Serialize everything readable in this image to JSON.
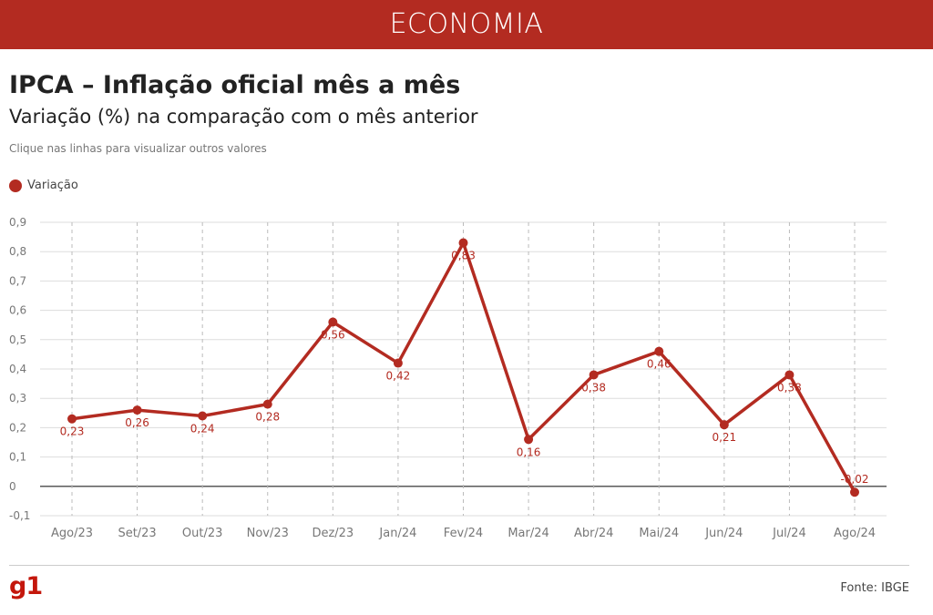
{
  "banner": {
    "section": "ECONOMIA"
  },
  "header": {
    "title": "IPCA – Inflação oficial mês a mês",
    "subtitle": "Variação (%) na comparação com o mês anterior",
    "hint": "Clique nas linhas para visualizar outros valores"
  },
  "legend": {
    "label": "Variação"
  },
  "footer": {
    "logo": "g1",
    "source": "Fonte: IBGE"
  },
  "colors": {
    "accent": "#b32b21",
    "grid": "#dddddd",
    "zero_line": "#222222",
    "axis_text": "#777777"
  },
  "chart_data": {
    "type": "line",
    "title": "IPCA – Inflação oficial mês a mês",
    "subtitle": "Variação (%) na comparação com o mês anterior",
    "categories": [
      "Ago/23",
      "Set/23",
      "Out/23",
      "Nov/23",
      "Dez/23",
      "Jan/24",
      "Fev/24",
      "Mar/24",
      "Abr/24",
      "Mai/24",
      "Jun/24",
      "Jul/24",
      "Ago/24"
    ],
    "series": [
      {
        "name": "Variação",
        "values": [
          0.23,
          0.26,
          0.24,
          0.28,
          0.56,
          0.42,
          0.83,
          0.16,
          0.38,
          0.46,
          0.21,
          0.38,
          -0.02
        ],
        "labels": [
          "0,23",
          "0,26",
          "0,24",
          "0,28",
          "0,56",
          "0,42",
          "0,83",
          "0,16",
          "0,38",
          "0,46",
          "0,21",
          "0,38",
          "-0,02"
        ]
      }
    ],
    "yticks": [
      -0.1,
      0,
      0.1,
      0.2,
      0.3,
      0.4,
      0.5,
      0.6,
      0.7,
      0.8,
      0.9
    ],
    "ytick_labels": [
      "-0,1",
      "0",
      "0,1",
      "0,2",
      "0,3",
      "0,4",
      "0,5",
      "0,6",
      "0,7",
      "0,8",
      "0,9"
    ],
    "ylim": [
      -0.1,
      0.9
    ],
    "xlabel": "",
    "ylabel": "",
    "grid": true,
    "legend_position": "top-left"
  }
}
